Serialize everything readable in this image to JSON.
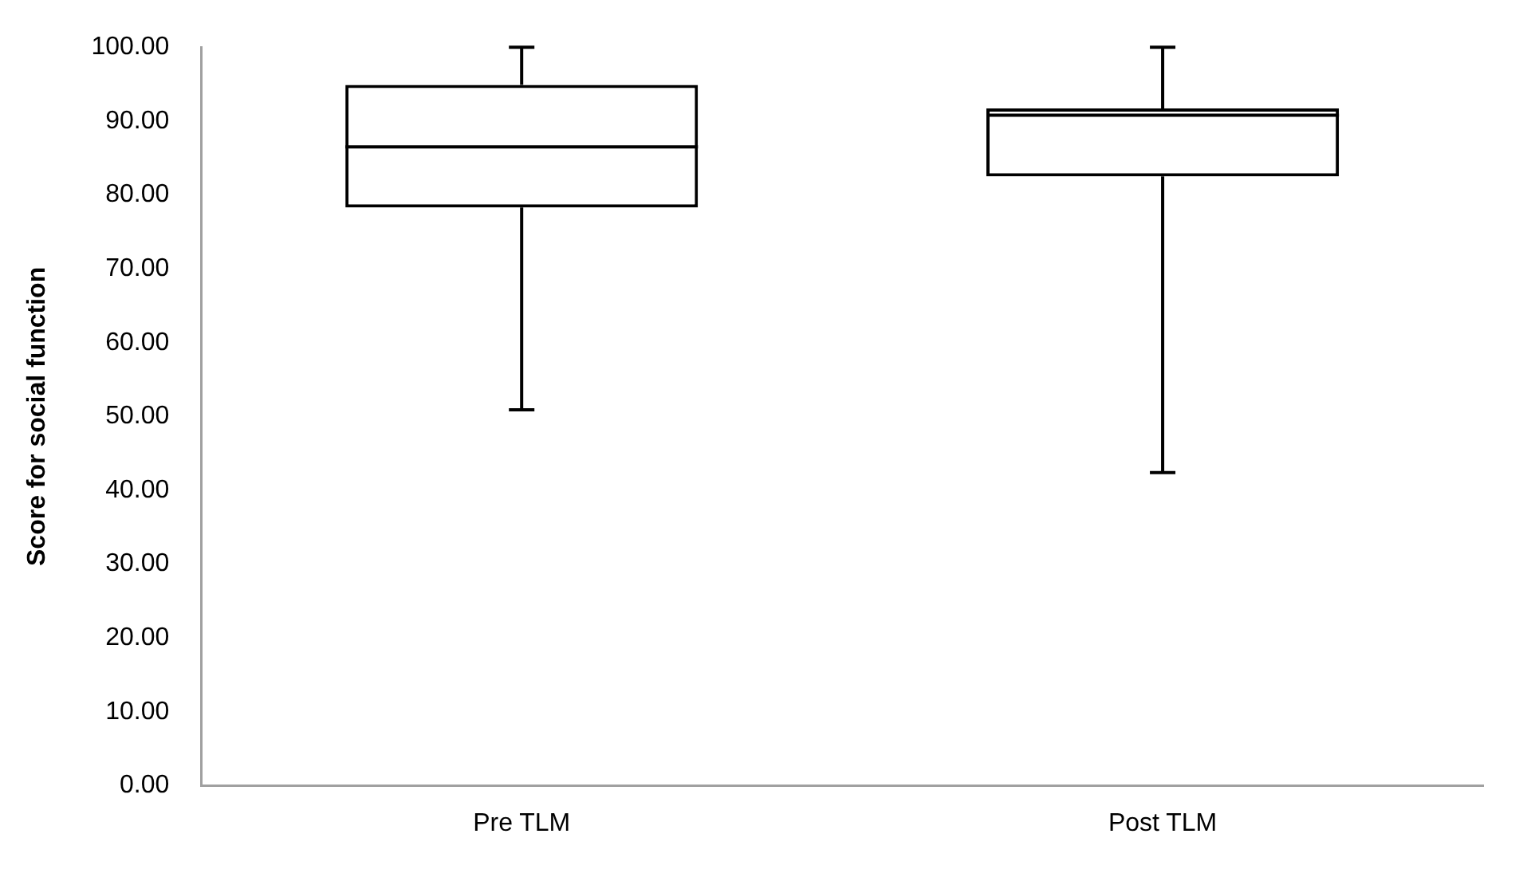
{
  "chart_data": {
    "type": "box",
    "ylabel": "Score for social function",
    "categories": [
      "Pre TLM",
      "Post TLM"
    ],
    "boxes": [
      {
        "low": 50.9,
        "q1": 78.3,
        "median": 86.5,
        "q3": 94.9,
        "high": 100
      },
      {
        "low": 42.4,
        "q1": 82.5,
        "median": 90.8,
        "q3": 91.7,
        "high": 100
      }
    ],
    "color": "#000000",
    "ylim": [
      0,
      100
    ],
    "yticks": [
      {
        "value": 0,
        "label": "0.00"
      },
      {
        "value": 10,
        "label": "10.00"
      },
      {
        "value": 20,
        "label": "20.00"
      },
      {
        "value": 30,
        "label": "30.00"
      },
      {
        "value": 40,
        "label": "40.00"
      },
      {
        "value": 50,
        "label": "50.00"
      },
      {
        "value": 60,
        "label": "60.00"
      },
      {
        "value": 70,
        "label": "70.00"
      },
      {
        "value": 80,
        "label": "80.00"
      },
      {
        "value": 90,
        "label": "90.00"
      },
      {
        "value": 100,
        "label": "100.00"
      }
    ],
    "grid": false,
    "legend": false
  }
}
